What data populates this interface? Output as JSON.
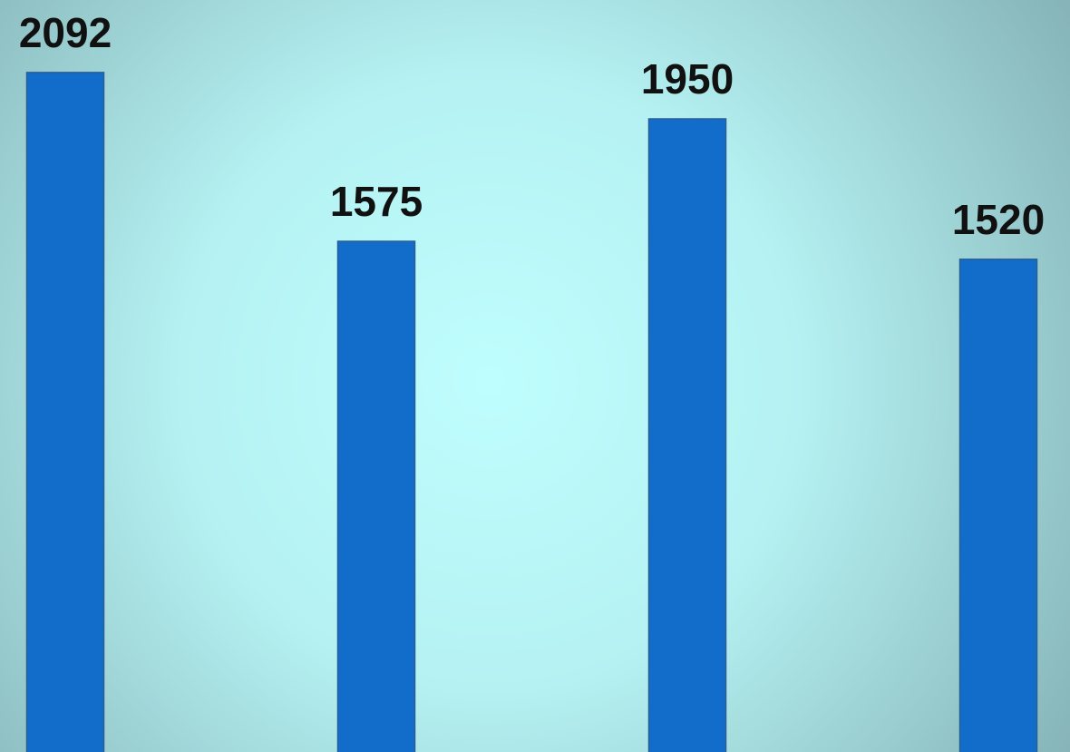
{
  "chart_data": {
    "type": "bar",
    "values": [
      2092,
      1575,
      1950,
      1520
    ],
    "color": "#126dca"
  }
}
